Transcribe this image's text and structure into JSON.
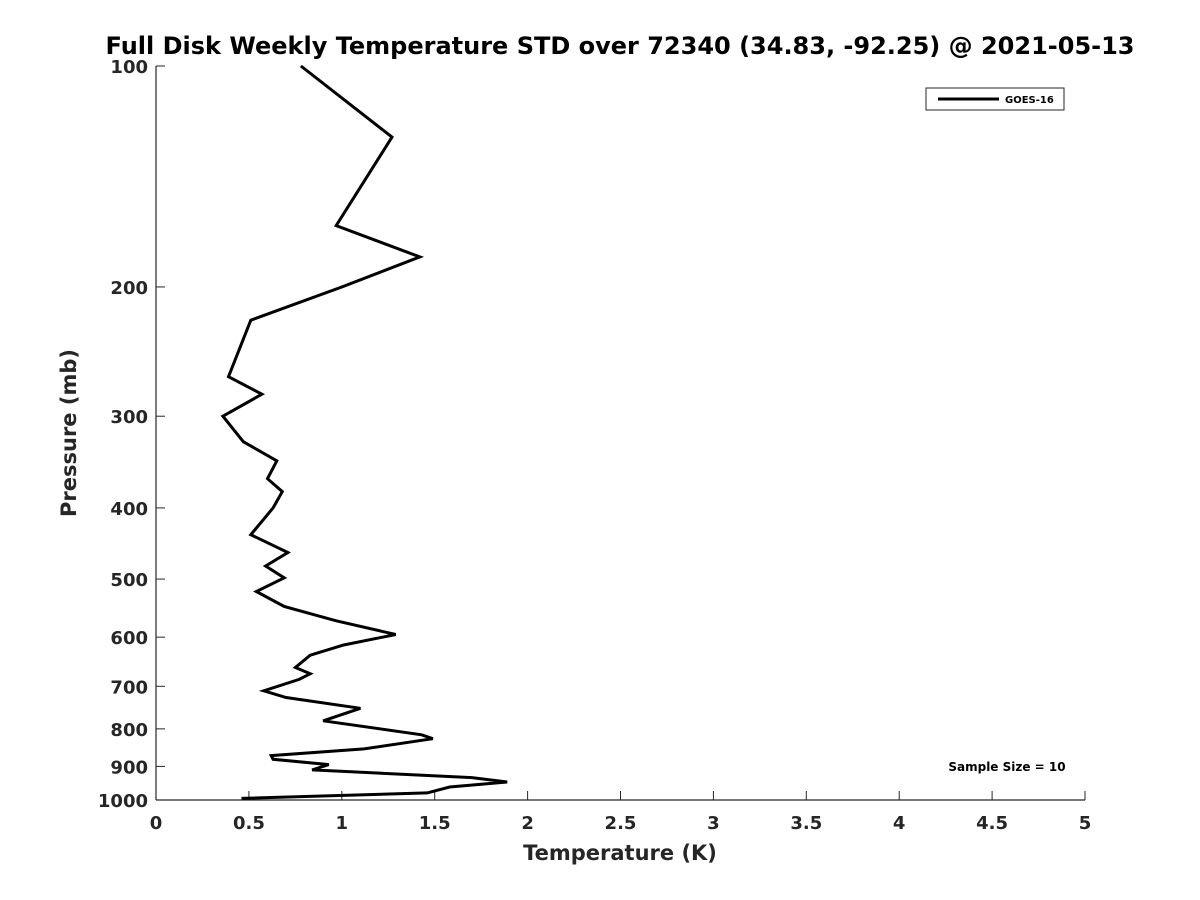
{
  "chart_data": {
    "type": "line",
    "title": "Full Disk Weekly Temperature STD over 72340 (34.83, -92.25) @ 2021-05-13",
    "xlabel": "Temperature (K)",
    "ylabel": "Pressure (mb)",
    "xlim": [
      0,
      5
    ],
    "ylim": [
      100,
      1000
    ],
    "y_scale": "log",
    "y_reversed": true,
    "x_ticks": [
      0,
      0.5,
      1,
      1.5,
      2,
      2.5,
      3,
      3.5,
      4,
      4.5,
      5
    ],
    "x_tick_labels": [
      "0",
      "0.5",
      "1",
      "1.5",
      "2",
      "2.5",
      "3",
      "3.5",
      "4",
      "4.5",
      "5"
    ],
    "y_ticks": [
      100,
      200,
      300,
      400,
      500,
      600,
      700,
      800,
      900,
      1000
    ],
    "y_tick_labels": [
      "100",
      "200",
      "300",
      "400",
      "500",
      "600",
      "700",
      "800",
      "900",
      "1000"
    ],
    "grid": false,
    "legend_position": "top-right",
    "series": [
      {
        "name": "GOES-16",
        "color": "#000000",
        "points": [
          [
            0.78,
            100
          ],
          [
            1.27,
            125
          ],
          [
            0.97,
            165
          ],
          [
            1.42,
            182
          ],
          [
            1.0,
            200
          ],
          [
            0.51,
            222
          ],
          [
            0.39,
            265
          ],
          [
            0.57,
            280
          ],
          [
            0.36,
            300
          ],
          [
            0.47,
            325
          ],
          [
            0.65,
            345
          ],
          [
            0.6,
            365
          ],
          [
            0.68,
            380
          ],
          [
            0.63,
            400
          ],
          [
            0.51,
            435
          ],
          [
            0.71,
            460
          ],
          [
            0.59,
            480
          ],
          [
            0.69,
            498
          ],
          [
            0.54,
            520
          ],
          [
            0.69,
            545
          ],
          [
            0.97,
            570
          ],
          [
            1.29,
            595
          ],
          [
            1.01,
            615
          ],
          [
            0.83,
            635
          ],
          [
            0.75,
            660
          ],
          [
            0.83,
            673
          ],
          [
            0.77,
            685
          ],
          [
            0.58,
            710
          ],
          [
            0.7,
            725
          ],
          [
            1.1,
            750
          ],
          [
            0.9,
            780
          ],
          [
            1.43,
            815
          ],
          [
            1.49,
            825
          ],
          [
            1.12,
            852
          ],
          [
            0.62,
            870
          ],
          [
            0.63,
            880
          ],
          [
            0.93,
            895
          ],
          [
            0.84,
            910
          ],
          [
            1.7,
            932
          ],
          [
            1.89,
            945
          ],
          [
            1.58,
            960
          ],
          [
            1.46,
            978
          ],
          [
            0.46,
            995
          ]
        ]
      }
    ],
    "annotations": [
      "Sample Size = 10"
    ]
  }
}
